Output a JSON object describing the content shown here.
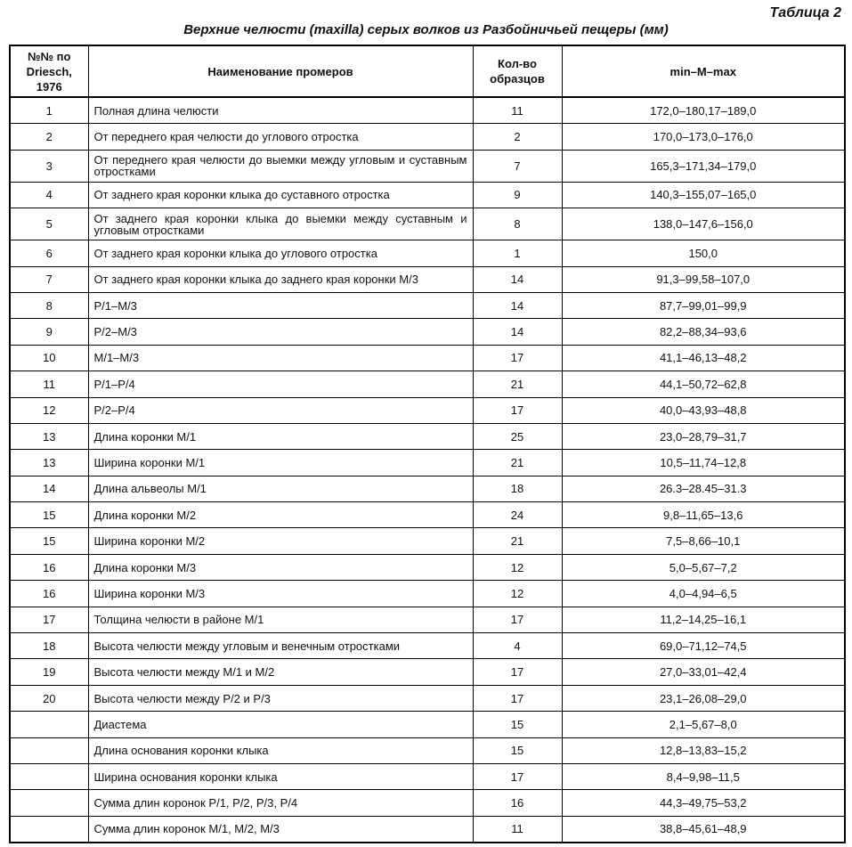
{
  "table_label": "Таблица 2",
  "title": "Верхние челюсти (maxilla) серых волков из Разбойничьей пещеры (мм)",
  "headers": [
    "№№ по Driesch, 1976",
    "Наименование промеров",
    "Кол-во образцов",
    "min–M–max"
  ],
  "rows": [
    {
      "no": "1",
      "name": "Полная длина челюсти",
      "n": "11",
      "range": "172,0–180,17–189,0"
    },
    {
      "no": "2",
      "name": "От переднего края челюсти до углового отростка",
      "n": "2",
      "range": "170,0–173,0–176,0"
    },
    {
      "no": "3",
      "name": "От переднего края челюсти  до выемки между угловым и суставным отростками",
      "n": "7",
      "range": "165,3–171,34–179,0"
    },
    {
      "no": "4",
      "name": "От заднего края коронки клыка до суставного отростка",
      "n": "9",
      "range": "140,3–155,07–165,0"
    },
    {
      "no": "5",
      "name": "От заднего края коронки клыка до выемки между суставным и угловым отростками",
      "n": "8",
      "range": "138,0–147,6–156,0"
    },
    {
      "no": "6",
      "name": "От заднего края коронки клыка до углового отростка",
      "n": "1",
      "range": "150,0"
    },
    {
      "no": "7",
      "name": "От заднего края коронки клыка до заднего края коронки М/3",
      "n": "14",
      "range": "91,3–99,58–107,0"
    },
    {
      "no": "8",
      "name": "P/1–M/3",
      "n": "14",
      "range": "87,7–99,01–99,9"
    },
    {
      "no": "9",
      "name": "P/2–M/3",
      "n": "14",
      "range": "82,2–88,34–93,6"
    },
    {
      "no": "10",
      "name": "M/1–M/3",
      "n": "17",
      "range": "41,1–46,13–48,2"
    },
    {
      "no": "11",
      "name": "P/1–P/4",
      "n": "21",
      "range": "44,1–50,72–62,8"
    },
    {
      "no": "12",
      "name": "P/2–P/4",
      "n": "17",
      "range": "40,0–43,93–48,8"
    },
    {
      "no": "13",
      "name": "Длина коронки М/1",
      "n": "25",
      "range": "23,0–28,79–31,7"
    },
    {
      "no": "13",
      "name": "Ширина коронки М/1",
      "n": "21",
      "range": "10,5–11,74–12,8"
    },
    {
      "no": "14",
      "name": "Длина альвеолы М/1",
      "n": "18",
      "range": "26.3–28.45–31.3"
    },
    {
      "no": "15",
      "name": "Длина коронки М/2",
      "n": "24",
      "range": "9,8–11,65–13,6"
    },
    {
      "no": "15",
      "name": "Ширина коронки М/2",
      "n": "21",
      "range": "7,5–8,66–10,1"
    },
    {
      "no": "16",
      "name": "Длина коронки М/3",
      "n": "12",
      "range": "5,0–5,67–7,2"
    },
    {
      "no": "16",
      "name": "Ширина коронки М/3",
      "n": "12",
      "range": "4,0–4,94–6,5"
    },
    {
      "no": "17",
      "name": "Толщина челюсти в районе М/1",
      "n": "17",
      "range": "11,2–14,25–16,1"
    },
    {
      "no": "18",
      "name": "Высота челюсти между угловым и венечным отростками",
      "n": "4",
      "range": "69,0–71,12–74,5"
    },
    {
      "no": "19",
      "name": "Высота челюсти между М/1 и М/2",
      "n": "17",
      "range": "27,0–33,01–42,4"
    },
    {
      "no": "20",
      "name": "Высота челюсти между Р/2 и Р/3",
      "n": "17",
      "range": "23,1–26,08–29,0"
    },
    {
      "no": "",
      "name": "Диастема",
      "n": "15",
      "range": "2,1–5,67–8,0"
    },
    {
      "no": "",
      "name": "Длина основания коронки клыка",
      "n": "15",
      "range": "12,8–13,83–15,2"
    },
    {
      "no": "",
      "name": "Ширина основания коронки клыка",
      "n": "17",
      "range": "8,4–9,98–11,5"
    },
    {
      "no": "",
      "name": "Сумма длин коронок  Р/1, Р/2, Р/3, Р/4",
      "n": "16",
      "range": "44,3–49,75–53,2"
    },
    {
      "no": "",
      "name": "Сумма длин коронок М/1, М/2, М/3",
      "n": "11",
      "range": "38,8–45,61–48,9"
    }
  ]
}
